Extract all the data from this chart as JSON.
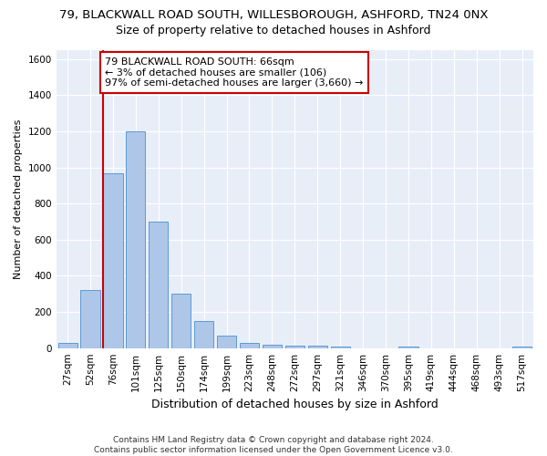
{
  "title_line1": "79, BLACKWALL ROAD SOUTH, WILLESBOROUGH, ASHFORD, TN24 0NX",
  "title_line2": "Size of property relative to detached houses in Ashford",
  "xlabel": "Distribution of detached houses by size in Ashford",
  "ylabel": "Number of detached properties",
  "footer_line1": "Contains HM Land Registry data © Crown copyright and database right 2024.",
  "footer_line2": "Contains public sector information licensed under the Open Government Licence v3.0.",
  "annotation_line1": "79 BLACKWALL ROAD SOUTH: 66sqm",
  "annotation_line2": "← 3% of detached houses are smaller (106)",
  "annotation_line3": "97% of semi-detached houses are larger (3,660) →",
  "categories": [
    "27sqm",
    "52sqm",
    "76sqm",
    "101sqm",
    "125sqm",
    "150sqm",
    "174sqm",
    "199sqm",
    "223sqm",
    "248sqm",
    "272sqm",
    "297sqm",
    "321sqm",
    "346sqm",
    "370sqm",
    "395sqm",
    "419sqm",
    "444sqm",
    "468sqm",
    "493sqm",
    "517sqm"
  ],
  "values": [
    30,
    320,
    970,
    1200,
    700,
    300,
    150,
    70,
    30,
    20,
    15,
    15,
    10,
    0,
    0,
    10,
    0,
    0,
    0,
    0,
    10
  ],
  "bar_color": "#aec6e8",
  "bar_edge_color": "#5b9bd5",
  "red_line_color": "#cc0000",
  "annotation_box_edge_color": "#cc0000",
  "axes_facecolor": "#e8eef8",
  "fig_facecolor": "#ffffff",
  "ylim": [
    0,
    1650
  ],
  "yticks": [
    0,
    200,
    400,
    600,
    800,
    1000,
    1200,
    1400,
    1600
  ],
  "grid_color": "#ffffff",
  "title_fontsize": 9.5,
  "subtitle_fontsize": 9,
  "ylabel_fontsize": 8,
  "xlabel_fontsize": 9,
  "tick_fontsize": 7.5,
  "footer_fontsize": 6.5,
  "annotation_fontsize": 8
}
